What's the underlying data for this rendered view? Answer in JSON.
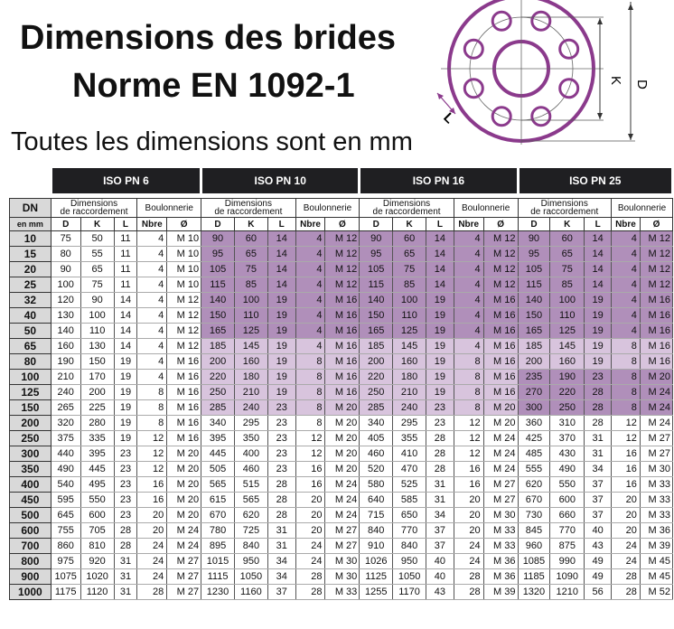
{
  "title_line1": "Dimensions des brides",
  "title_line2": "Norme EN 1092-1",
  "subtitle": "Toutes les dimensions sont en mm",
  "diagram": {
    "label_d": "D",
    "label_k": "K",
    "label_l": "L",
    "accent_color": "#8b3a8c"
  },
  "colors": {
    "highlight_dark": "#b08fba",
    "highlight_light": "#d8c4dd",
    "header_bar": "#1f1f22"
  },
  "table": {
    "groups": [
      "ISO PN 6",
      "ISO PN 10",
      "ISO PN 16",
      "ISO PN 25"
    ],
    "dn_header": "DN",
    "dn_sub": "en mm",
    "dim_header_line1": "Dimensions",
    "dim_header_line2": "de raccordement",
    "bolt_header": "Boulonnerie",
    "cols": [
      "D",
      "K",
      "L",
      "Nbre",
      "Ø"
    ],
    "rows": [
      {
        "dn": "10",
        "v": [
          [
            "75",
            "50",
            "11",
            "4",
            "M 10"
          ],
          [
            "90",
            "60",
            "14",
            "4",
            "M 12"
          ],
          [
            "90",
            "60",
            "14",
            "4",
            "M 12"
          ],
          [
            "90",
            "60",
            "14",
            "4",
            "M 12"
          ]
        ]
      },
      {
        "dn": "15",
        "v": [
          [
            "80",
            "55",
            "11",
            "4",
            "M 10"
          ],
          [
            "95",
            "65",
            "14",
            "4",
            "M 12"
          ],
          [
            "95",
            "65",
            "14",
            "4",
            "M 12"
          ],
          [
            "95",
            "65",
            "14",
            "4",
            "M 12"
          ]
        ]
      },
      {
        "dn": "20",
        "v": [
          [
            "90",
            "65",
            "11",
            "4",
            "M 10"
          ],
          [
            "105",
            "75",
            "14",
            "4",
            "M 12"
          ],
          [
            "105",
            "75",
            "14",
            "4",
            "M 12"
          ],
          [
            "105",
            "75",
            "14",
            "4",
            "M 12"
          ]
        ]
      },
      {
        "dn": "25",
        "v": [
          [
            "100",
            "75",
            "11",
            "4",
            "M 10"
          ],
          [
            "115",
            "85",
            "14",
            "4",
            "M 12"
          ],
          [
            "115",
            "85",
            "14",
            "4",
            "M 12"
          ],
          [
            "115",
            "85",
            "14",
            "4",
            "M 12"
          ]
        ]
      },
      {
        "dn": "32",
        "v": [
          [
            "120",
            "90",
            "14",
            "4",
            "M 12"
          ],
          [
            "140",
            "100",
            "19",
            "4",
            "M 16"
          ],
          [
            "140",
            "100",
            "19",
            "4",
            "M 16"
          ],
          [
            "140",
            "100",
            "19",
            "4",
            "M 16"
          ]
        ]
      },
      {
        "dn": "40",
        "v": [
          [
            "130",
            "100",
            "14",
            "4",
            "M 12"
          ],
          [
            "150",
            "110",
            "19",
            "4",
            "M 16"
          ],
          [
            "150",
            "110",
            "19",
            "4",
            "M 16"
          ],
          [
            "150",
            "110",
            "19",
            "4",
            "M 16"
          ]
        ]
      },
      {
        "dn": "50",
        "v": [
          [
            "140",
            "110",
            "14",
            "4",
            "M 12"
          ],
          [
            "165",
            "125",
            "19",
            "4",
            "M 16"
          ],
          [
            "165",
            "125",
            "19",
            "4",
            "M 16"
          ],
          [
            "165",
            "125",
            "19",
            "4",
            "M 16"
          ]
        ]
      },
      {
        "dn": "65",
        "v": [
          [
            "160",
            "130",
            "14",
            "4",
            "M 12"
          ],
          [
            "185",
            "145",
            "19",
            "4",
            "M 16"
          ],
          [
            "185",
            "145",
            "19",
            "4",
            "M 16"
          ],
          [
            "185",
            "145",
            "19",
            "8",
            "M 16"
          ]
        ]
      },
      {
        "dn": "80",
        "v": [
          [
            "190",
            "150",
            "19",
            "4",
            "M 16"
          ],
          [
            "200",
            "160",
            "19",
            "8",
            "M 16"
          ],
          [
            "200",
            "160",
            "19",
            "8",
            "M 16"
          ],
          [
            "200",
            "160",
            "19",
            "8",
            "M 16"
          ]
        ]
      },
      {
        "dn": "100",
        "v": [
          [
            "210",
            "170",
            "19",
            "4",
            "M 16"
          ],
          [
            "220",
            "180",
            "19",
            "8",
            "M 16"
          ],
          [
            "220",
            "180",
            "19",
            "8",
            "M 16"
          ],
          [
            "235",
            "190",
            "23",
            "8",
            "M 20"
          ]
        ]
      },
      {
        "dn": "125",
        "v": [
          [
            "240",
            "200",
            "19",
            "8",
            "M 16"
          ],
          [
            "250",
            "210",
            "19",
            "8",
            "M 16"
          ],
          [
            "250",
            "210",
            "19",
            "8",
            "M 16"
          ],
          [
            "270",
            "220",
            "28",
            "8",
            "M 24"
          ]
        ]
      },
      {
        "dn": "150",
        "v": [
          [
            "265",
            "225",
            "19",
            "8",
            "M 16"
          ],
          [
            "285",
            "240",
            "23",
            "8",
            "M 20"
          ],
          [
            "285",
            "240",
            "23",
            "8",
            "M 20"
          ],
          [
            "300",
            "250",
            "28",
            "8",
            "M 24"
          ]
        ]
      },
      {
        "dn": "200",
        "v": [
          [
            "320",
            "280",
            "19",
            "8",
            "M 16"
          ],
          [
            "340",
            "295",
            "23",
            "8",
            "M 20"
          ],
          [
            "340",
            "295",
            "23",
            "12",
            "M 20"
          ],
          [
            "360",
            "310",
            "28",
            "12",
            "M 24"
          ]
        ]
      },
      {
        "dn": "250",
        "v": [
          [
            "375",
            "335",
            "19",
            "12",
            "M 16"
          ],
          [
            "395",
            "350",
            "23",
            "12",
            "M 20"
          ],
          [
            "405",
            "355",
            "28",
            "12",
            "M 24"
          ],
          [
            "425",
            "370",
            "31",
            "12",
            "M 27"
          ]
        ]
      },
      {
        "dn": "300",
        "v": [
          [
            "440",
            "395",
            "23",
            "12",
            "M 20"
          ],
          [
            "445",
            "400",
            "23",
            "12",
            "M 20"
          ],
          [
            "460",
            "410",
            "28",
            "12",
            "M 24"
          ],
          [
            "485",
            "430",
            "31",
            "16",
            "M 27"
          ]
        ]
      },
      {
        "dn": "350",
        "v": [
          [
            "490",
            "445",
            "23",
            "12",
            "M 20"
          ],
          [
            "505",
            "460",
            "23",
            "16",
            "M 20"
          ],
          [
            "520",
            "470",
            "28",
            "16",
            "M 24"
          ],
          [
            "555",
            "490",
            "34",
            "16",
            "M 30"
          ]
        ]
      },
      {
        "dn": "400",
        "v": [
          [
            "540",
            "495",
            "23",
            "16",
            "M 20"
          ],
          [
            "565",
            "515",
            "28",
            "16",
            "M 24"
          ],
          [
            "580",
            "525",
            "31",
            "16",
            "M 27"
          ],
          [
            "620",
            "550",
            "37",
            "16",
            "M 33"
          ]
        ]
      },
      {
        "dn": "450",
        "v": [
          [
            "595",
            "550",
            "23",
            "16",
            "M 20"
          ],
          [
            "615",
            "565",
            "28",
            "20",
            "M 24"
          ],
          [
            "640",
            "585",
            "31",
            "20",
            "M 27"
          ],
          [
            "670",
            "600",
            "37",
            "20",
            "M 33"
          ]
        ]
      },
      {
        "dn": "500",
        "v": [
          [
            "645",
            "600",
            "23",
            "20",
            "M 20"
          ],
          [
            "670",
            "620",
            "28",
            "20",
            "M 24"
          ],
          [
            "715",
            "650",
            "34",
            "20",
            "M 30"
          ],
          [
            "730",
            "660",
            "37",
            "20",
            "M 33"
          ]
        ]
      },
      {
        "dn": "600",
        "v": [
          [
            "755",
            "705",
            "28",
            "20",
            "M 24"
          ],
          [
            "780",
            "725",
            "31",
            "20",
            "M 27"
          ],
          [
            "840",
            "770",
            "37",
            "20",
            "M 33"
          ],
          [
            "845",
            "770",
            "40",
            "20",
            "M 36"
          ]
        ]
      },
      {
        "dn": "700",
        "v": [
          [
            "860",
            "810",
            "28",
            "24",
            "M 24"
          ],
          [
            "895",
            "840",
            "31",
            "24",
            "M 27"
          ],
          [
            "910",
            "840",
            "37",
            "24",
            "M 33"
          ],
          [
            "960",
            "875",
            "43",
            "24",
            "M 39"
          ]
        ]
      },
      {
        "dn": "800",
        "v": [
          [
            "975",
            "920",
            "31",
            "24",
            "M 27"
          ],
          [
            "1015",
            "950",
            "34",
            "24",
            "M 30"
          ],
          [
            "1026",
            "950",
            "40",
            "24",
            "M 36"
          ],
          [
            "1085",
            "990",
            "49",
            "24",
            "M 45"
          ]
        ]
      },
      {
        "dn": "900",
        "v": [
          [
            "1075",
            "1020",
            "31",
            "24",
            "M 27"
          ],
          [
            "1115",
            "1050",
            "34",
            "28",
            "M 30"
          ],
          [
            "1125",
            "1050",
            "40",
            "28",
            "M 36"
          ],
          [
            "1185",
            "1090",
            "49",
            "28",
            "M 45"
          ]
        ]
      },
      {
        "dn": "1000",
        "v": [
          [
            "1175",
            "1120",
            "31",
            "28",
            "M 27"
          ],
          [
            "1230",
            "1160",
            "37",
            "28",
            "M 33"
          ],
          [
            "1255",
            "1170",
            "43",
            "28",
            "M 39"
          ],
          [
            "1320",
            "1210",
            "56",
            "28",
            "M 52"
          ]
        ]
      }
    ]
  }
}
